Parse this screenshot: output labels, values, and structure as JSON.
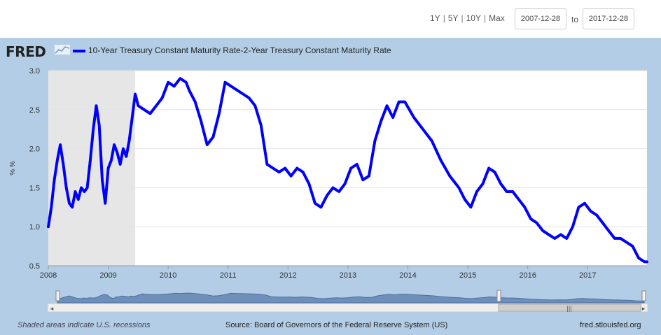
{
  "range": {
    "buttons": [
      "1Y",
      "5Y",
      "10Y",
      "Max"
    ],
    "start_date": "2007-12-28",
    "end_date": "2017-12-28",
    "to_label": "to"
  },
  "brand": {
    "logo": "FRED"
  },
  "colors": {
    "line": "#0000ff",
    "panel": "#b3cde6",
    "recession": "#e6e6e6",
    "navigator": "#6f8fba"
  },
  "footer": {
    "recession_note": "Shaded areas indicate U.S. recessions",
    "source": "Source: Board of Governors of the Federal Reserve System (US)",
    "site": "fred.stlouisfed.org"
  },
  "chart_data": {
    "type": "line",
    "legend": "10-Year Treasury Constant Maturity Rate-2-Year Treasury Constant Maturity Rate",
    "ylabel": "% %",
    "ylim": [
      0.5,
      3.0
    ],
    "xlim": [
      2008.0,
      2017.99
    ],
    "yticks": [
      "0.5",
      "1.0",
      "1.5",
      "2.0",
      "2.5",
      "3.0"
    ],
    "xticks": [
      "2008",
      "2009",
      "2010",
      "2011",
      "2012",
      "2013",
      "2014",
      "2015",
      "2016",
      "2017"
    ],
    "recessions": [
      [
        2008.0,
        2009.45
      ]
    ],
    "series": [
      {
        "name": "10-Year Treasury Constant Maturity Rate-2-Year Treasury Constant Maturity Rate",
        "x": [
          2008.0,
          2008.05,
          2008.1,
          2008.15,
          2008.2,
          2008.25,
          2008.3,
          2008.35,
          2008.4,
          2008.45,
          2008.5,
          2008.55,
          2008.6,
          2008.65,
          2008.7,
          2008.75,
          2008.8,
          2008.85,
          2008.9,
          2008.95,
          2009.0,
          2009.05,
          2009.1,
          2009.15,
          2009.2,
          2009.25,
          2009.3,
          2009.35,
          2009.4,
          2009.45,
          2009.5,
          2009.6,
          2009.7,
          2009.8,
          2009.9,
          2010.0,
          2010.1,
          2010.2,
          2010.3,
          2010.35,
          2010.45,
          2010.55,
          2010.65,
          2010.75,
          2010.85,
          2010.95,
          2011.05,
          2011.15,
          2011.25,
          2011.35,
          2011.45,
          2011.55,
          2011.65,
          2011.75,
          2011.85,
          2011.95,
          2012.05,
          2012.15,
          2012.25,
          2012.35,
          2012.45,
          2012.55,
          2012.65,
          2012.75,
          2012.85,
          2012.95,
          2013.05,
          2013.15,
          2013.25,
          2013.35,
          2013.45,
          2013.55,
          2013.65,
          2013.75,
          2013.85,
          2013.95,
          2014.1,
          2014.25,
          2014.4,
          2014.55,
          2014.7,
          2014.85,
          2014.95,
          2015.05,
          2015.15,
          2015.25,
          2015.35,
          2015.45,
          2015.55,
          2015.65,
          2015.75,
          2015.85,
          2015.95,
          2016.05,
          2016.15,
          2016.25,
          2016.35,
          2016.45,
          2016.55,
          2016.65,
          2016.75,
          2016.85,
          2016.95,
          2017.05,
          2017.15,
          2017.25,
          2017.35,
          2017.45,
          2017.55,
          2017.65,
          2017.75,
          2017.85,
          2017.95,
          2017.99
        ],
        "values": [
          1.0,
          1.25,
          1.6,
          1.85,
          2.05,
          1.8,
          1.5,
          1.3,
          1.25,
          1.45,
          1.35,
          1.5,
          1.45,
          1.5,
          1.85,
          2.25,
          2.55,
          2.3,
          1.6,
          1.3,
          1.75,
          1.85,
          2.05,
          1.95,
          1.8,
          2.0,
          1.9,
          2.1,
          2.4,
          2.7,
          2.55,
          2.5,
          2.45,
          2.55,
          2.65,
          2.85,
          2.8,
          2.9,
          2.85,
          2.75,
          2.6,
          2.35,
          2.05,
          2.15,
          2.45,
          2.85,
          2.8,
          2.75,
          2.7,
          2.65,
          2.55,
          2.3,
          1.8,
          1.75,
          1.7,
          1.75,
          1.65,
          1.75,
          1.7,
          1.55,
          1.3,
          1.25,
          1.4,
          1.5,
          1.45,
          1.55,
          1.75,
          1.8,
          1.6,
          1.65,
          2.1,
          2.35,
          2.55,
          2.4,
          2.6,
          2.6,
          2.4,
          2.25,
          2.1,
          1.85,
          1.65,
          1.5,
          1.35,
          1.25,
          1.45,
          1.55,
          1.75,
          1.7,
          1.55,
          1.45,
          1.45,
          1.35,
          1.25,
          1.1,
          1.05,
          0.95,
          0.9,
          0.85,
          0.9,
          0.85,
          1.0,
          1.25,
          1.3,
          1.2,
          1.15,
          1.05,
          0.95,
          0.85,
          0.85,
          0.8,
          0.75,
          0.6,
          0.55,
          0.55
        ]
      }
    ]
  }
}
